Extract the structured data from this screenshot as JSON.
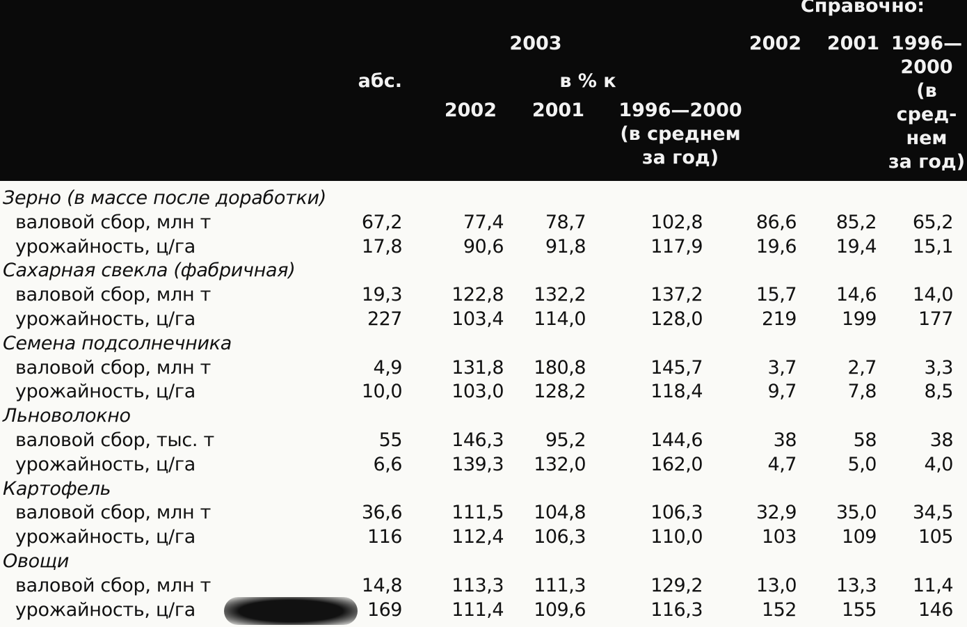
{
  "header": {
    "reference": "Справочно:",
    "year_2003": "2003",
    "abs": "абс.",
    "in_percent": "в % к",
    "pct_2002": "2002",
    "pct_2001": "2001",
    "pct_avg_lines": [
      "1996—2000",
      "(в среднем",
      "за год)"
    ],
    "ref_2002": "2002",
    "ref_2001": "2001",
    "ref_avg_lines": [
      "1996—",
      "2000",
      "(в",
      "сред-",
      "нем",
      "за год)"
    ]
  },
  "rows": [
    {
      "type": "group",
      "label": "Зерно (в массе после доработки)"
    },
    {
      "type": "data",
      "label": "валовой сбор, млн т",
      "values": [
        "67,2",
        "77,4",
        "78,7",
        "102,8",
        "86,6",
        "85,2",
        "65,2"
      ]
    },
    {
      "type": "data",
      "label": "урожайность, ц/га",
      "values": [
        "17,8",
        "90,6",
        "91,8",
        "117,9",
        "19,6",
        "19,4",
        "15,1"
      ]
    },
    {
      "type": "group",
      "label": "Сахарная свекла (фабричная)"
    },
    {
      "type": "data",
      "label": "валовой сбор, млн т",
      "values": [
        "19,3",
        "122,8",
        "132,2",
        "137,2",
        "15,7",
        "14,6",
        "14,0"
      ]
    },
    {
      "type": "data",
      "label": "урожайность, ц/га",
      "values": [
        "227",
        "103,4",
        "114,0",
        "128,0",
        "219",
        "199",
        "177"
      ]
    },
    {
      "type": "group",
      "label": "Семена подсолнечника"
    },
    {
      "type": "data",
      "label": "валовой сбор, млн т",
      "values": [
        "4,9",
        "131,8",
        "180,8",
        "145,7",
        "3,7",
        "2,7",
        "3,3"
      ]
    },
    {
      "type": "data",
      "label": "урожайность, ц/га",
      "values": [
        "10,0",
        "103,0",
        "128,2",
        "118,4",
        "9,7",
        "7,8",
        "8,5"
      ]
    },
    {
      "type": "group",
      "label": "Льноволокно"
    },
    {
      "type": "data",
      "label": "валовой сбор, тыс. т",
      "values": [
        "55",
        "146,3",
        "95,2",
        "144,6",
        "38",
        "58",
        "38"
      ]
    },
    {
      "type": "data",
      "label": "урожайность, ц/га",
      "values": [
        "6,6",
        "139,3",
        "132,0",
        "162,0",
        "4,7",
        "5,0",
        "4,0"
      ]
    },
    {
      "type": "group",
      "label": "Картофель"
    },
    {
      "type": "data",
      "label": "валовой сбор, млн т",
      "values": [
        "36,6",
        "111,5",
        "104,8",
        "106,3",
        "32,9",
        "35,0",
        "34,5"
      ]
    },
    {
      "type": "data",
      "label": "урожайность, ц/га",
      "values": [
        "116",
        "112,4",
        "106,3",
        "110,0",
        "103",
        "109",
        "105"
      ]
    },
    {
      "type": "group",
      "label": "Овощи"
    },
    {
      "type": "data",
      "label": "валовой сбор, млн т",
      "values": [
        "14,8",
        "113,3",
        "111,3",
        "129,2",
        "13,0",
        "13,3",
        "11,4"
      ]
    },
    {
      "type": "data",
      "label": "урожайность, ц/га",
      "values": [
        "169",
        "111,4",
        "109,6",
        "116,3",
        "152",
        "155",
        "146"
      ]
    }
  ]
}
